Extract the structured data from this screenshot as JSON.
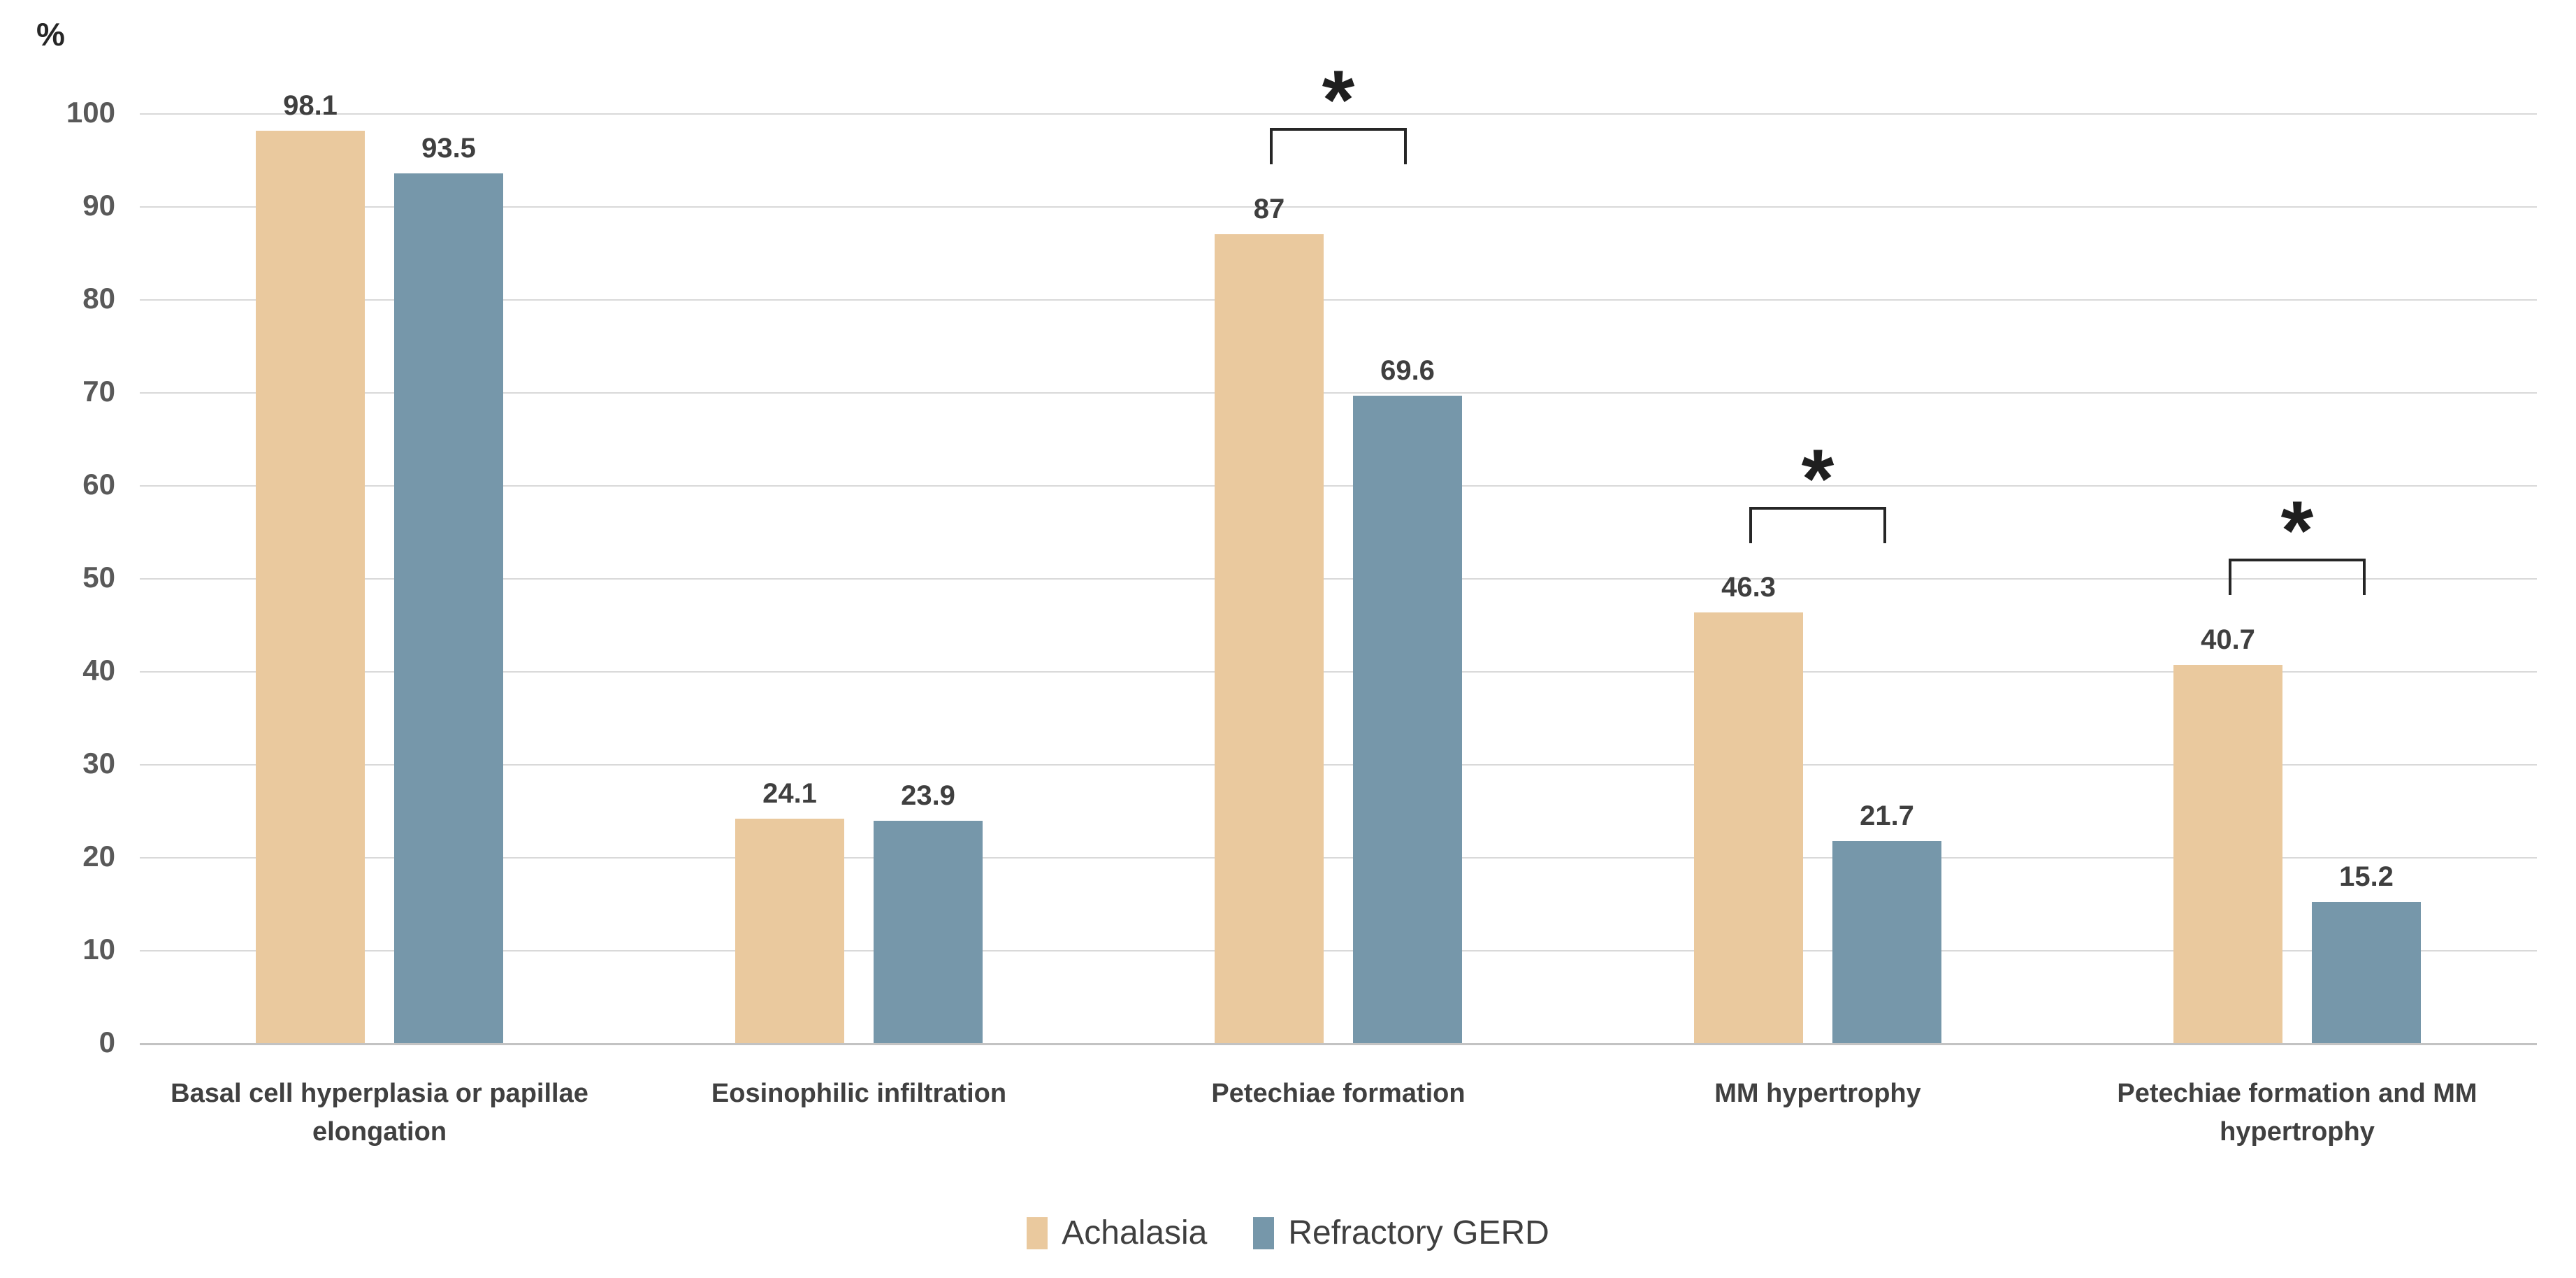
{
  "chart_data": {
    "type": "bar",
    "title": "",
    "y_axis_title": "%",
    "categories": [
      "Basal cell hyperplasia or papillae elongation",
      "Eosinophilic infiltration",
      "Petechiae formation",
      "MM hypertrophy",
      "Petechiae formation and MM hypertrophy"
    ],
    "series": [
      {
        "name": "Achalasia",
        "color": "#eac99e",
        "values": [
          98.1,
          24.1,
          87,
          46.3,
          40.7
        ],
        "labels": [
          "98.1",
          "24.1",
          "87",
          "46.3",
          "40.7"
        ]
      },
      {
        "name": "Refractory GERD",
        "color": "#7697aa",
        "values": [
          93.5,
          23.9,
          69.6,
          21.7,
          15.2
        ],
        "labels": [
          "93.5",
          "23.9",
          "69.6",
          "21.7",
          "15.2"
        ]
      }
    ],
    "significance": [
      false,
      false,
      true,
      true,
      true
    ],
    "significance_marker": "*",
    "ylim": [
      0,
      100
    ],
    "y_ticks": [
      "0",
      "10",
      "20",
      "30",
      "40",
      "50",
      "60",
      "70",
      "80",
      "90",
      "100"
    ],
    "grid": true,
    "legend_position": "bottom",
    "legend": [
      "Achalasia",
      "Refractory GERD"
    ]
  },
  "colors": {
    "achalasia": "#eac99e",
    "refractory_gerd": "#7697aa",
    "gridline": "#d9d9d9",
    "axis_line": "#c3c3c3",
    "value_label_text": "#3f3f3f",
    "category_label_text": "#404040",
    "tick_label_text": "#595959",
    "legend_text": "#3f3f3f",
    "bracket": "#262626",
    "background": "#ffffff"
  }
}
